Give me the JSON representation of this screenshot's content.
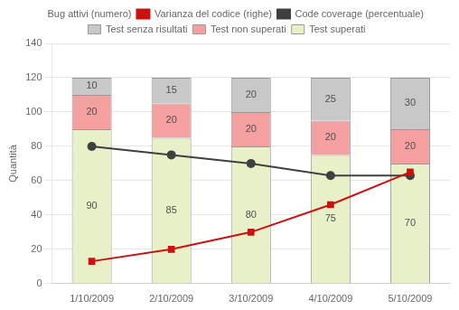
{
  "chart_data": {
    "type": "bar",
    "stacked": true,
    "grid": true,
    "legend": "top",
    "ylabel": "Quantità",
    "categories": [
      "1/10/2009",
      "2/10/2009",
      "3/10/2009",
      "4/10/2009",
      "5/10/2009"
    ],
    "ylim": [
      0,
      140
    ],
    "yticks": [
      0,
      20,
      40,
      60,
      80,
      100,
      120,
      140
    ],
    "annotations": [
      "Bug attivi (numero)"
    ],
    "series": [
      {
        "name": "Test superati",
        "type": "bar",
        "color": "#e8f0c8",
        "data_labels": true,
        "values": [
          90,
          85,
          80,
          75,
          70
        ]
      },
      {
        "name": "Test non superati",
        "type": "bar",
        "color": "#f5a0a0",
        "data_labels": true,
        "values": [
          20,
          20,
          20,
          20,
          20
        ]
      },
      {
        "name": "Test senza risultati",
        "type": "bar",
        "color": "#c8c8c8",
        "data_labels": true,
        "values": [
          10,
          15,
          20,
          25,
          30
        ]
      },
      {
        "name": "Varianza del codice (righe)",
        "type": "line",
        "color": "#cc1111",
        "marker": "square",
        "values": [
          13,
          20,
          30,
          46,
          65
        ]
      },
      {
        "name": "Code coverage (percentuale)",
        "type": "line",
        "color": "#404040",
        "marker": "circle",
        "values": [
          80,
          75,
          70,
          63,
          63
        ]
      }
    ]
  }
}
